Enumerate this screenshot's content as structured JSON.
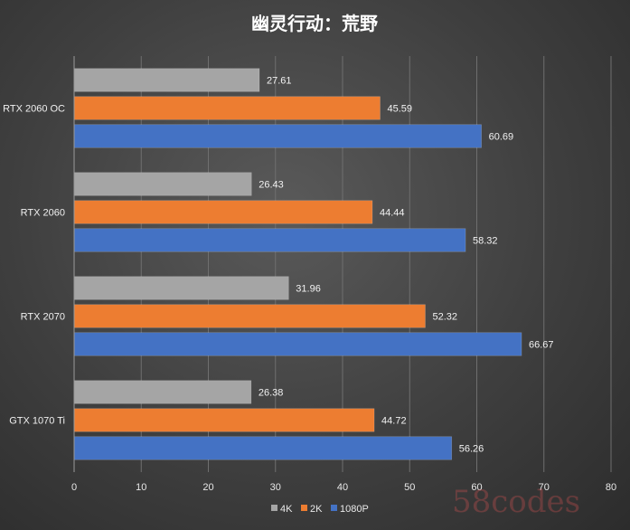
{
  "chart_data": {
    "type": "bar",
    "orientation": "horizontal",
    "title": "幽灵行动：荒野",
    "categories": [
      "RTX 2060 OC",
      "RTX 2060",
      "RTX 2070",
      "GTX 1070 Ti"
    ],
    "series": [
      {
        "name": "4K",
        "color": "#a5a5a5",
        "values": [
          27.61,
          26.43,
          31.96,
          26.38
        ]
      },
      {
        "name": "2K",
        "color": "#ed7d31",
        "values": [
          45.59,
          44.44,
          52.32,
          44.72
        ]
      },
      {
        "name": "1080P",
        "color": "#4472c4",
        "values": [
          60.69,
          58.32,
          66.67,
          56.26
        ]
      }
    ],
    "xlim": [
      0,
      80
    ],
    "xticks": [
      0,
      10,
      20,
      30,
      40,
      50,
      60,
      70,
      80
    ],
    "xlabel": "",
    "ylabel": "",
    "grid": "vertical",
    "legend": "bottom"
  },
  "watermark": "58codes"
}
